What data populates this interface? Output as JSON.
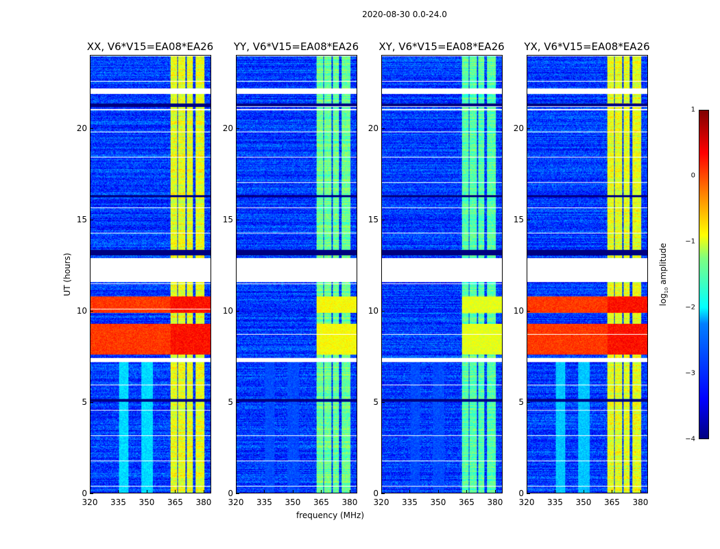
{
  "suptitle": "2020-08-30 0.0-24.0",
  "chart_data": [
    {
      "type": "heatmap",
      "title": "XX, V6*V15=EA08*EA26",
      "rfi_level": -1.0,
      "faint_band_level": -2.3,
      "strong_level": 0.3
    },
    {
      "type": "heatmap",
      "title": "YY, V6*V15=EA08*EA26",
      "rfi_level": -1.6,
      "faint_band_level": -3.0,
      "strong_level": -0.9
    },
    {
      "type": "heatmap",
      "title": "XY, V6*V15=EA08*EA26",
      "rfi_level": -1.7,
      "faint_band_level": -3.0,
      "strong_level": -1.0
    },
    {
      "type": "heatmap",
      "title": "YX, V6*V15=EA08*EA26",
      "rfi_level": -1.0,
      "faint_band_level": -2.4,
      "strong_level": 0.3
    }
  ],
  "axes": {
    "xlabel": "frequency (MHz)",
    "ylabel": "UT (hours)",
    "xlim": [
      320,
      384
    ],
    "ylim": [
      0,
      24
    ],
    "xticks": [
      "320",
      "335",
      "350",
      "365",
      "380"
    ],
    "xtick_values": [
      320,
      335,
      350,
      365,
      380
    ],
    "yticks": [
      "0",
      "5",
      "10",
      "15",
      "20"
    ],
    "ytick_values": [
      0,
      5,
      10,
      15,
      20
    ],
    "rfi_bands_mhz": [
      [
        362.5,
        366
      ],
      [
        366.5,
        370.5
      ],
      [
        371,
        374.5
      ],
      [
        376,
        380.5
      ]
    ],
    "faint_bands_mhz": [
      [
        335,
        340
      ],
      [
        347,
        353
      ]
    ],
    "blank_ut": [
      [
        11.6,
        12.9
      ],
      [
        7.2,
        7.4
      ],
      [
        21.9,
        22.2
      ],
      [
        21.0,
        21.1
      ]
    ],
    "strong_rfi_ut": [
      [
        7.6,
        9.3
      ],
      [
        9.9,
        10.8
      ]
    ]
  },
  "colorbar": {
    "label": "log10 amplitude",
    "range": [
      -4,
      1
    ],
    "ticks": [
      "1",
      "0",
      "−1",
      "−2",
      "−3",
      "−4"
    ],
    "tick_values": [
      1,
      0,
      -1,
      -2,
      -3,
      -4
    ]
  }
}
